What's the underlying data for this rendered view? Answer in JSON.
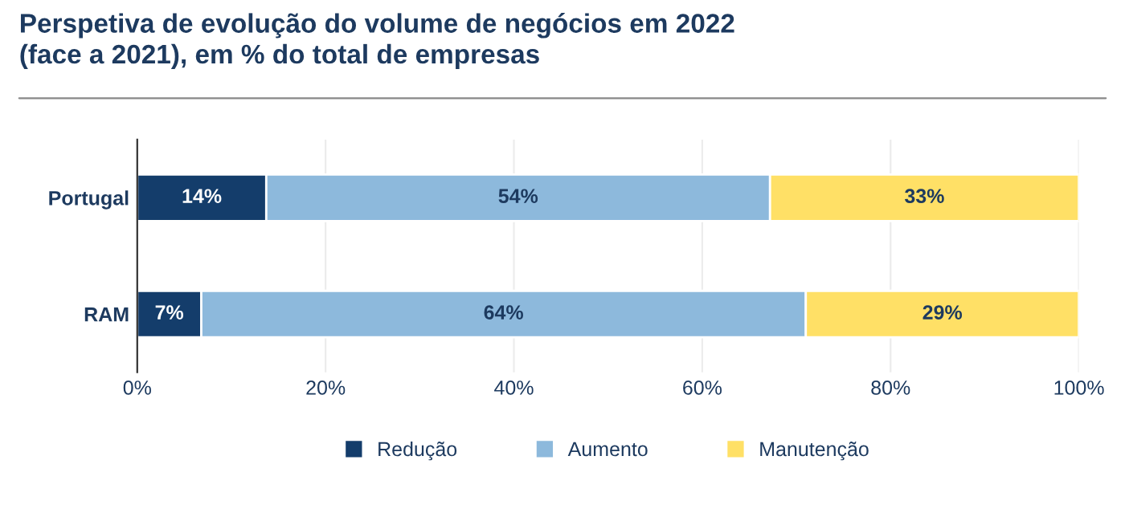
{
  "chart_data": {
    "type": "bar",
    "orientation": "horizontal",
    "stacked": true,
    "title": "Perspetiva de evolução do volume de negócios em 2022\n(face a 2021), em % do total de empresas",
    "categories": [
      "Portugal",
      "RAM"
    ],
    "series": [
      {
        "name": "Redução",
        "color": "#143d6b",
        "values": [
          13.7,
          6.8
        ],
        "value_labels": [
          "14%",
          "7%"
        ]
      },
      {
        "name": "Aumento",
        "color": "#8db9dc",
        "values": [
          53.5,
          64.2
        ],
        "value_labels": [
          "54%",
          "64%"
        ]
      },
      {
        "name": "Manutenção",
        "color": "#ffe066",
        "values": [
          32.8,
          29.0
        ],
        "value_labels": [
          "33%",
          "29%"
        ]
      }
    ],
    "xlim": [
      0,
      100
    ],
    "xticks": [
      {
        "value": 0,
        "label": "0%"
      },
      {
        "value": 20,
        "label": "20%"
      },
      {
        "value": 40,
        "label": "40%"
      },
      {
        "value": 60,
        "label": "60%"
      },
      {
        "value": 80,
        "label": "80%"
      },
      {
        "value": 100,
        "label": "100%"
      }
    ],
    "grid": "x",
    "legend": "bottom"
  }
}
